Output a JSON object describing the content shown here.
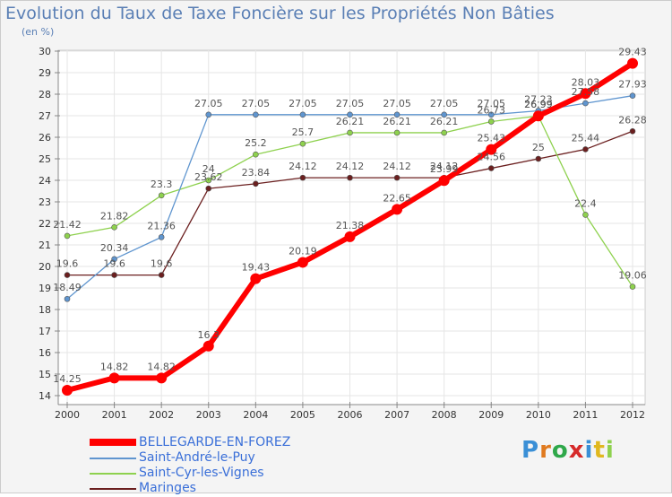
{
  "chart_data": {
    "type": "line",
    "title": "Evolution du Taux de Taxe Foncière sur les Propriétés Non Bâties",
    "ylabel": "(en %)",
    "xlabel": "",
    "categories": [
      "2000",
      "2001",
      "2002",
      "2003",
      "2004",
      "2005",
      "2006",
      "2007",
      "2008",
      "2009",
      "2010",
      "2011",
      "2012"
    ],
    "ylim": [
      14,
      30
    ],
    "yticks": [
      "14",
      "15",
      "16",
      "17",
      "18",
      "19",
      "20",
      "21",
      "22",
      "23",
      "24",
      "25",
      "26",
      "27",
      "28",
      "29",
      "30"
    ],
    "grid": true,
    "series": [
      {
        "name": "BELLEGARDE-EN-FOREZ",
        "color": "#ff0000",
        "width": 6,
        "marker": 6,
        "values": [
          14.25,
          14.82,
          14.82,
          16.3,
          19.43,
          20.19,
          21.38,
          22.65,
          23.99,
          25.43,
          26.99,
          28.03,
          29.43
        ],
        "labels": [
          "14.25",
          "14.82",
          "14.82",
          "16.3",
          "19.43",
          "20.19",
          "21.38",
          "22.65",
          "23.99",
          "25.43",
          "26.99",
          "28.03",
          "29.43"
        ]
      },
      {
        "name": "Saint-André-le-Puy",
        "color": "#5f95cf",
        "width": 1.3,
        "marker": 3,
        "values": [
          18.49,
          20.34,
          21.36,
          27.05,
          27.05,
          27.05,
          27.05,
          27.05,
          27.05,
          27.05,
          27.23,
          27.58,
          27.93
        ],
        "labels": [
          "18.49",
          "20.34",
          "21.36",
          "27.05",
          "27.05",
          "27.05",
          "27.05",
          "27.05",
          "27.05",
          "27.05",
          "27.23",
          "27.58",
          "27.93"
        ]
      },
      {
        "name": "Saint-Cyr-les-Vignes",
        "color": "#8ed14e",
        "width": 1.3,
        "marker": 3,
        "values": [
          21.42,
          21.82,
          23.3,
          24,
          25.2,
          25.7,
          26.21,
          26.21,
          26.21,
          26.73,
          26.99,
          22.4,
          19.06
        ],
        "labels": [
          "21.42",
          "21.82",
          "23.3",
          "24",
          "25.2",
          "25.7",
          "26.21",
          "26.21",
          "26.21",
          "26.73",
          "26.99",
          "22.4",
          "19.06"
        ]
      },
      {
        "name": "Maringes",
        "color": "#6b1f1f",
        "width": 1.3,
        "marker": 3,
        "values": [
          19.6,
          19.6,
          19.6,
          23.62,
          23.84,
          24.12,
          24.12,
          24.12,
          24.12,
          24.56,
          25,
          25.44,
          26.28
        ],
        "labels": [
          "19.6",
          "19.6",
          "19.6",
          "23.62",
          "23.84",
          "24.12",
          "24.12",
          "24.12",
          "24.12",
          "24.56",
          "25",
          "25.44",
          "26.28"
        ]
      }
    ]
  },
  "legend": {
    "items": [
      {
        "label": "BELLEGARDE-EN-FOREZ",
        "color": "#ff0000"
      },
      {
        "label": "Saint-André-le-Puy",
        "color": "#5f95cf"
      },
      {
        "label": "Saint-Cyr-les-Vignes",
        "color": "#8ed14e"
      },
      {
        "label": "Maringes",
        "color": "#6b1f1f"
      }
    ]
  },
  "logo": {
    "letters": [
      "P",
      "r",
      "o",
      "x",
      "i",
      "t",
      "i"
    ],
    "colors": [
      "#3a8fd6",
      "#e07a1f",
      "#2fa84a",
      "#d62a2a",
      "#3a8fd6",
      "#e0b81f",
      "#8ed14e"
    ]
  }
}
